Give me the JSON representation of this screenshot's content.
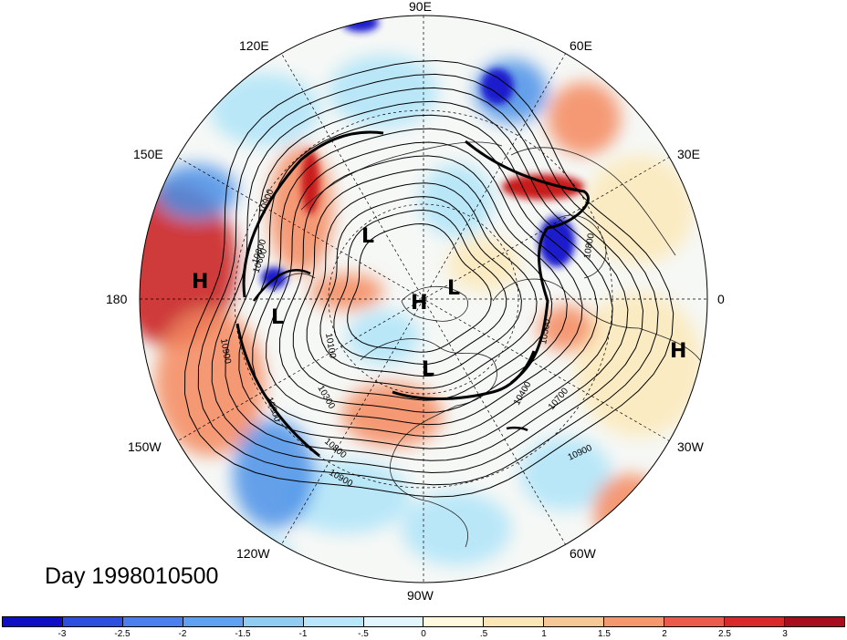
{
  "map": {
    "projection": "north polar stereographic",
    "longitude_labels": {
      "lon_90E": "90E",
      "lon_60E": "60E",
      "lon_30E": "30E",
      "lon_0": "0",
      "lon_30W": "30W",
      "lon_60W": "60W",
      "lon_90W": "90W",
      "lon_120W": "120W",
      "lon_150W": "150W",
      "lon_180": "180",
      "lon_150E": "150E",
      "lon_120E": "120E"
    },
    "pressure_centers": [
      {
        "label": "H",
        "location": "north-central Pacific"
      },
      {
        "label": "L",
        "location": "west of Alaska"
      },
      {
        "label": "L",
        "location": "eastern Siberia"
      },
      {
        "label": "H",
        "location": "North Pole"
      },
      {
        "label": "L",
        "location": "Greenland / Arctic"
      },
      {
        "label": "L",
        "location": "Hudson Bay"
      },
      {
        "label": "H",
        "location": "eastern subtropical Atlantic"
      }
    ],
    "contour_labels": [
      "10900",
      "10800",
      "10600",
      "10900",
      "10900",
      "10300",
      "10100",
      "10800",
      "10900",
      "10800",
      "10500",
      "10400",
      "10700",
      "10900"
    ],
    "colors": {
      "strong_negative": "#1a1acc",
      "moderate_negative": "#4a90e8",
      "weak_negative": "#aee4f8",
      "neutral": "#ffffff",
      "weak_positive": "#fbe9b8",
      "moderate_positive": "#f4885e",
      "strong_positive": "#c81a1a"
    }
  },
  "title": {
    "day_label": "Day 1998010500"
  },
  "colorbar": {
    "ticks": [
      "-3",
      "-2.5",
      "-2",
      "-1.5",
      "-1",
      "-.5",
      "0",
      ".5",
      "1",
      "1.5",
      "2",
      "2.5",
      "3"
    ],
    "colors": [
      "#0f0fc8",
      "#2b4fe0",
      "#4a7fee",
      "#5fa2f2",
      "#8fcdf5",
      "#b8e7fa",
      "#e2f6fc",
      "#fffadf",
      "#fce6b4",
      "#f8c894",
      "#f4996e",
      "#ec5a4a",
      "#d92828",
      "#a80c1e"
    ]
  }
}
